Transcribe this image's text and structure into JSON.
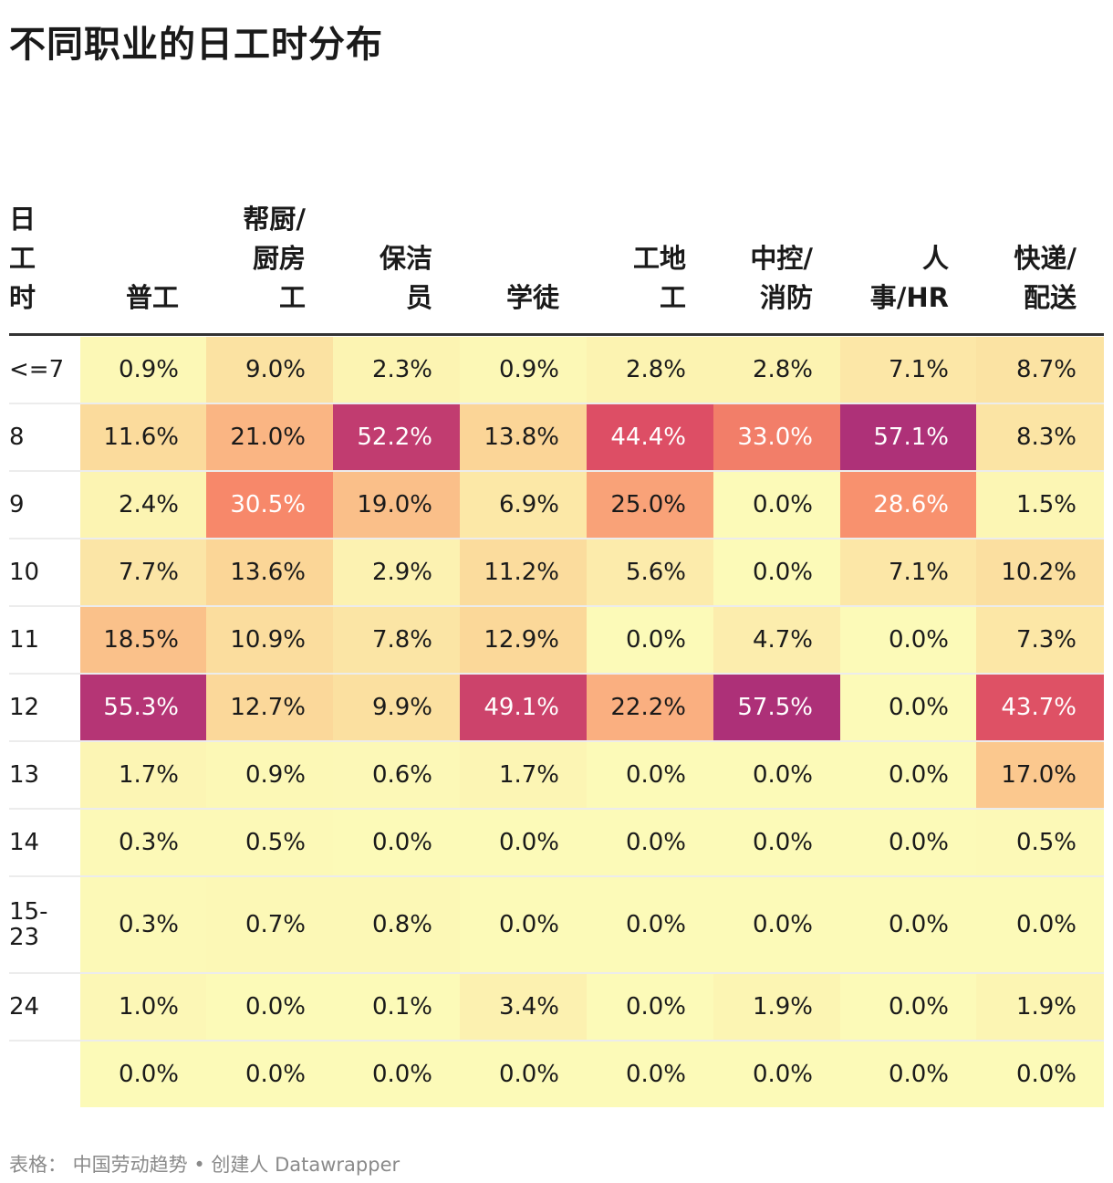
{
  "title": "不同职业的日工时分布",
  "footer": "表格： 中国劳动趋势 • 创建人 Datawrapper",
  "colors": {
    "scale_low": "#fcfab8",
    "scale_mid": "#fa9a6c",
    "scale_high": "#a32a7c",
    "text_dark": "#1a1a1a",
    "text_light": "#ffffff"
  },
  "chart_data": {
    "type": "heatmap",
    "row_header": "日\n工\n时",
    "columns": [
      "普工",
      "帮厨/\n厨房\n工",
      "保洁\n员",
      "学徒",
      "工地\n工",
      "中控/\n消防",
      "人\n事/HR",
      "快递/\n配送"
    ],
    "rows": [
      "<=7",
      "8",
      "9",
      "10",
      "11",
      "12",
      "13",
      "14",
      "15-\n23",
      "24",
      ""
    ],
    "values": [
      [
        "0.9%",
        "9.0%",
        "2.3%",
        "0.9%",
        "2.8%",
        "2.8%",
        "7.1%",
        "8.7%"
      ],
      [
        "11.6%",
        "21.0%",
        "52.2%",
        "13.8%",
        "44.4%",
        "33.0%",
        "57.1%",
        "8.3%"
      ],
      [
        "2.4%",
        "30.5%",
        "19.0%",
        "6.9%",
        "25.0%",
        "0.0%",
        "28.6%",
        "1.5%"
      ],
      [
        "7.7%",
        "13.6%",
        "2.9%",
        "11.2%",
        "5.6%",
        "0.0%",
        "7.1%",
        "10.2%"
      ],
      [
        "18.5%",
        "10.9%",
        "7.8%",
        "12.9%",
        "0.0%",
        "4.7%",
        "0.0%",
        "7.3%"
      ],
      [
        "55.3%",
        "12.7%",
        "9.9%",
        "49.1%",
        "22.2%",
        "57.5%",
        "0.0%",
        "43.7%"
      ],
      [
        "1.7%",
        "0.9%",
        "0.6%",
        "1.7%",
        "0.0%",
        "0.0%",
        "0.0%",
        "17.0%"
      ],
      [
        "0.3%",
        "0.5%",
        "0.0%",
        "0.0%",
        "0.0%",
        "0.0%",
        "0.0%",
        "0.5%"
      ],
      [
        "0.3%",
        "0.7%",
        "0.8%",
        "0.0%",
        "0.0%",
        "0.0%",
        "0.0%",
        "0.0%"
      ],
      [
        "1.0%",
        "0.0%",
        "0.1%",
        "3.4%",
        "0.0%",
        "1.9%",
        "0.0%",
        "1.9%"
      ],
      [
        "0.0%",
        "0.0%",
        "0.0%",
        "0.0%",
        "0.0%",
        "0.0%",
        "0.0%",
        "0.0%"
      ]
    ]
  }
}
